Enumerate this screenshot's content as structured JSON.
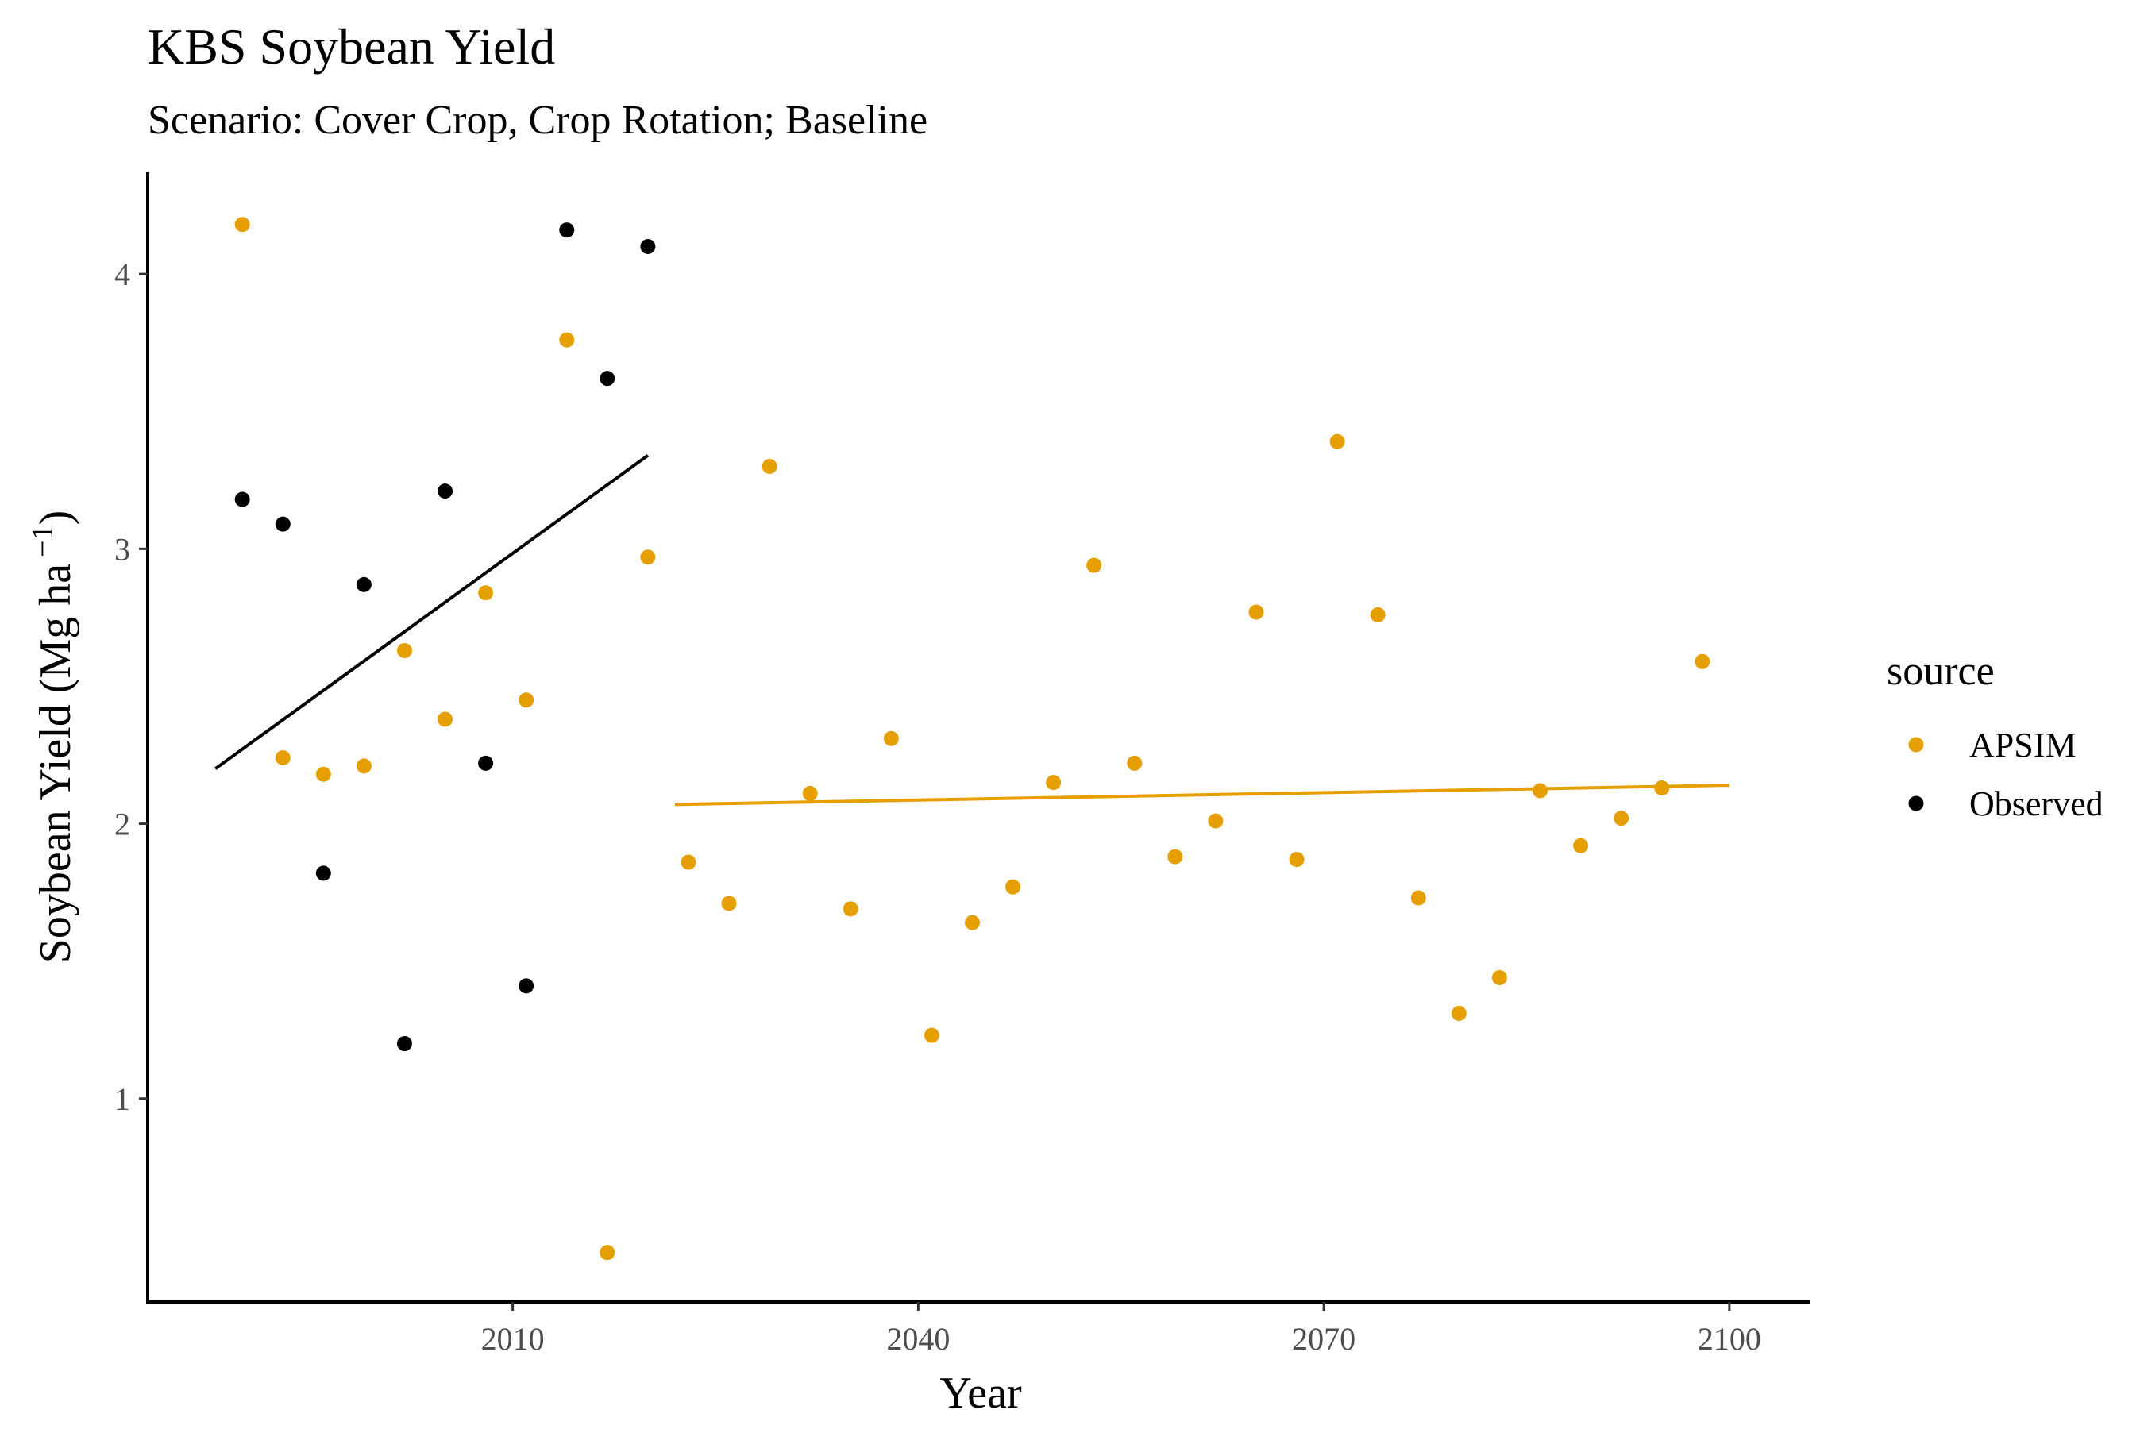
{
  "chart_data": {
    "type": "scatter",
    "title": "KBS Soybean Yield",
    "subtitle": "Scenario: Cover Crop, Crop Rotation; Baseline",
    "xlabel": "Year",
    "ylabel_main": "Soybean Yield (Mg ha",
    "ylabel_sup": "−1",
    "ylabel_close": ")",
    "xlim": [
      1983,
      2106
    ],
    "ylim": [
      0.26,
      4.37
    ],
    "x_ticks": [
      2010,
      2040,
      2070,
      2100
    ],
    "y_ticks": [
      1,
      2,
      3,
      4
    ],
    "legend_title": "source",
    "legend_position": "right",
    "series": [
      {
        "name": "APSIM",
        "color": "#E69F00",
        "points": [
          [
            1990,
            4.18
          ],
          [
            1993,
            2.24
          ],
          [
            1996,
            2.18
          ],
          [
            1999,
            2.21
          ],
          [
            2002,
            2.63
          ],
          [
            2005,
            2.38
          ],
          [
            2008,
            2.84
          ],
          [
            2011,
            2.45
          ],
          [
            2014,
            3.76
          ],
          [
            2017,
            0.44
          ],
          [
            2020,
            2.97
          ],
          [
            2023,
            1.86
          ],
          [
            2026,
            1.71
          ],
          [
            2029,
            3.3
          ],
          [
            2032,
            2.11
          ],
          [
            2035,
            1.69
          ],
          [
            2038,
            2.31
          ],
          [
            2041,
            1.23
          ],
          [
            2044,
            1.64
          ],
          [
            2047,
            1.77
          ],
          [
            2050,
            2.15
          ],
          [
            2053,
            2.94
          ],
          [
            2056,
            2.22
          ],
          [
            2059,
            1.88
          ],
          [
            2062,
            2.01
          ],
          [
            2065,
            2.77
          ],
          [
            2068,
            1.87
          ],
          [
            2071,
            3.39
          ],
          [
            2074,
            2.76
          ],
          [
            2077,
            1.73
          ],
          [
            2080,
            1.31
          ],
          [
            2083,
            1.44
          ],
          [
            2086,
            2.12
          ],
          [
            2089,
            1.92
          ],
          [
            2092,
            2.02
          ],
          [
            2095,
            2.13
          ],
          [
            2098,
            2.59
          ]
        ],
        "trend": [
          [
            2022,
            2.07
          ],
          [
            2100,
            2.14
          ]
        ]
      },
      {
        "name": "Observed",
        "color": "#000000",
        "points": [
          [
            1990,
            3.18
          ],
          [
            1993,
            3.09
          ],
          [
            1996,
            1.82
          ],
          [
            1999,
            2.87
          ],
          [
            2002,
            1.2
          ],
          [
            2005,
            3.21
          ],
          [
            2008,
            2.22
          ],
          [
            2011,
            1.41
          ],
          [
            2014,
            4.16
          ],
          [
            2017,
            3.62
          ],
          [
            2020,
            4.1
          ]
        ],
        "trend": [
          [
            1988,
            2.2
          ],
          [
            2020,
            3.34
          ]
        ]
      }
    ]
  }
}
